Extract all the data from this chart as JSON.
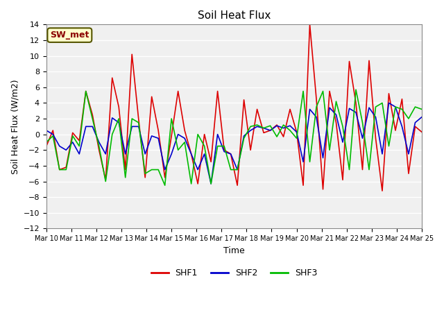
{
  "title": "Soil Heat Flux",
  "ylabel": "Soil Heat Flux (W/m2)",
  "xlabel": "Time",
  "annotation": "SW_met",
  "ylim": [
    -12,
    14
  ],
  "yticks": [
    -12,
    -10,
    -8,
    -6,
    -4,
    -2,
    0,
    2,
    4,
    6,
    8,
    10,
    12,
    14
  ],
  "bg_color": "#ffffff",
  "plot_bg_color": "#f0f0f0",
  "legend_labels": [
    "SHF1",
    "SHF2",
    "SHF3"
  ],
  "legend_colors": [
    "#dd0000",
    "#0000cc",
    "#00bb00"
  ],
  "x_tick_labels": [
    "Mar 10",
    "Mar 11",
    "Mar 12",
    "Mar 13",
    "Mar 14",
    "Mar 15",
    "Mar 16",
    "Mar 17",
    "Mar 18",
    "Mar 19",
    "Mar 20",
    "Mar 21",
    "Mar 22",
    "Mar 23",
    "Mar 24",
    "Mar 25"
  ],
  "shf1": [
    -1.5,
    0.5,
    -4.5,
    -4.2,
    0.2,
    -0.8,
    5.5,
    2.5,
    -2.0,
    -5.8,
    7.2,
    3.5,
    -4.5,
    10.2,
    2.0,
    -5.5,
    4.8,
    0.5,
    -5.5,
    -0.2,
    5.5,
    0.5,
    -2.5,
    -6.3,
    0.0,
    -3.5,
    5.5,
    -2.0,
    -2.5,
    -6.5,
    4.4,
    -2.0,
    3.2,
    0.2,
    0.5,
    1.2,
    -0.3,
    3.2,
    0.3,
    -6.5,
    14.0,
    4.5,
    -7.0,
    5.5,
    1.5,
    -5.8,
    9.3,
    4.0,
    -4.5,
    9.4,
    -0.5,
    -7.2,
    5.2,
    0.5,
    4.5,
    -5.0,
    1.0,
    0.3
  ],
  "shf2": [
    0.5,
    0.0,
    -1.5,
    -2.0,
    -1.0,
    -2.5,
    1.0,
    1.0,
    -1.0,
    -2.5,
    2.1,
    1.5,
    -2.5,
    1.0,
    1.0,
    -2.5,
    -0.2,
    -0.5,
    -4.5,
    -2.5,
    0.0,
    -0.5,
    -2.5,
    -4.5,
    -2.5,
    -6.3,
    0.0,
    -2.2,
    -2.5,
    -4.5,
    -0.2,
    0.5,
    1.0,
    0.8,
    0.5,
    1.1,
    0.8,
    1.1,
    0.3,
    -3.5,
    3.2,
    2.2,
    -3.0,
    3.4,
    2.5,
    -1.0,
    3.3,
    2.8,
    -0.5,
    3.4,
    2.2,
    -2.5,
    4.0,
    3.5,
    1.0,
    -2.5,
    1.5,
    2.2
  ],
  "shf3": [
    -1.0,
    -0.2,
    -4.5,
    -4.5,
    -0.2,
    -1.5,
    5.5,
    2.0,
    -1.5,
    -6.0,
    0.0,
    2.0,
    -5.5,
    2.0,
    1.5,
    -5.0,
    -4.5,
    -4.5,
    -6.5,
    2.0,
    -2.0,
    -1.0,
    -6.3,
    0.0,
    -1.5,
    -6.3,
    -1.5,
    -1.5,
    -4.5,
    -4.5,
    -0.5,
    1.0,
    1.2,
    0.8,
    1.1,
    -0.3,
    1.2,
    0.5,
    -0.5,
    5.5,
    -3.5,
    3.5,
    5.5,
    -2.0,
    4.2,
    1.0,
    -4.5,
    5.7,
    1.5,
    -4.5,
    3.5,
    4.0,
    -1.5,
    3.5,
    3.2,
    2.0,
    3.5,
    3.2
  ]
}
